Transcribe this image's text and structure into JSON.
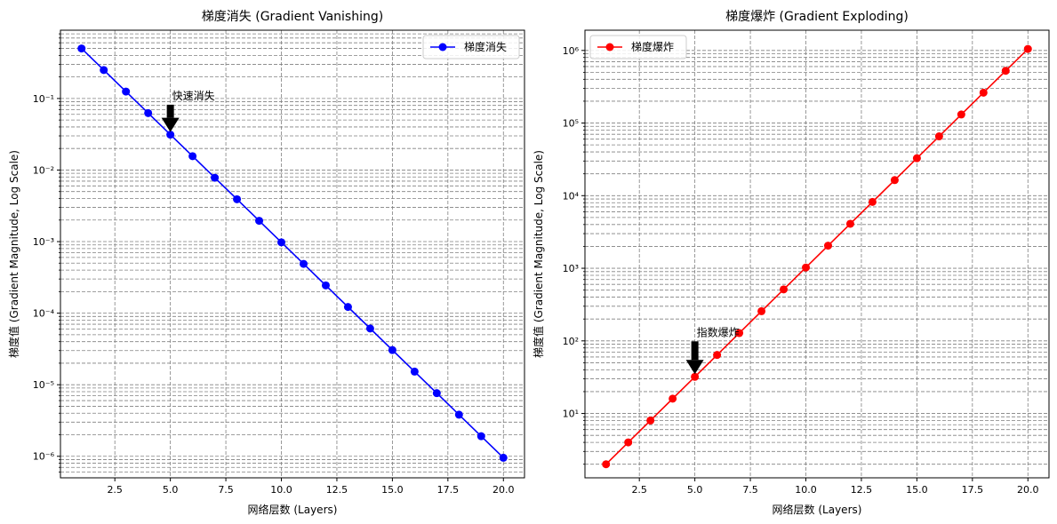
{
  "chart_data": [
    {
      "type": "line",
      "title": "梯度消失 (Gradient Vanishing)",
      "xlabel": "网络层数 (Layers)",
      "ylabel": "梯度值 (Gradient Magnitude, Log Scale)",
      "yscale": "log",
      "xlim": [
        0.05,
        20.95
      ],
      "ylim": [
        5e-07,
        0.9
      ],
      "xticks": [
        2.5,
        5.0,
        7.5,
        10.0,
        12.5,
        15.0,
        17.5,
        20.0
      ],
      "xtick_labels": [
        "2.5",
        "5.0",
        "7.5",
        "10.0",
        "12.5",
        "15.0",
        "17.5",
        "20.0"
      ],
      "ytick_exponents": [
        -6,
        -5,
        -4,
        -3,
        -2,
        -1
      ],
      "ytick_labels": [
        "10⁻⁶",
        "10⁻⁵",
        "10⁻⁴",
        "10⁻³",
        "10⁻²",
        "10⁻¹"
      ],
      "grid": true,
      "legend_position": "upper right",
      "series": [
        {
          "name": "梯度消失",
          "color": "#0000ff",
          "marker": "circle",
          "x": [
            1,
            2,
            3,
            4,
            5,
            6,
            7,
            8,
            9,
            10,
            11,
            12,
            13,
            14,
            15,
            16,
            17,
            18,
            19,
            20
          ],
          "y": [
            0.5,
            0.25,
            0.125,
            0.0625,
            0.03125,
            0.015625,
            0.0078125,
            0.00390625,
            0.001953125,
            0.0009765625,
            0.00048828125,
            0.000244140625,
            0.0001220703125,
            6.103515625e-05,
            3.0517578125e-05,
            1.52587890625e-05,
            7.62939453125e-06,
            3.814697265625e-06,
            1.9073486328125e-06,
            9.5367431640625e-07
          ]
        }
      ],
      "annotation": {
        "text": "快速消失",
        "x": 5,
        "y": 0.03125,
        "text_y": 0.1
      }
    },
    {
      "type": "line",
      "title": "梯度爆炸 (Gradient Exploding)",
      "xlabel": "网络层数 (Layers)",
      "ylabel": "梯度值 (Gradient Magnitude, Log Scale)",
      "yscale": "log",
      "xlim": [
        0.05,
        20.95
      ],
      "ylim": [
        1.3,
        1900000.0
      ],
      "xticks": [
        2.5,
        5.0,
        7.5,
        10.0,
        12.5,
        15.0,
        17.5,
        20.0
      ],
      "xtick_labels": [
        "2.5",
        "5.0",
        "7.5",
        "10.0",
        "12.5",
        "15.0",
        "17.5",
        "20.0"
      ],
      "ytick_exponents": [
        1,
        2,
        3,
        4,
        5,
        6
      ],
      "ytick_labels": [
        "10¹",
        "10²",
        "10³",
        "10⁴",
        "10⁵",
        "10⁶"
      ],
      "grid": true,
      "legend_position": "upper left",
      "series": [
        {
          "name": "梯度爆炸",
          "color": "#ff0000",
          "marker": "circle",
          "x": [
            1,
            2,
            3,
            4,
            5,
            6,
            7,
            8,
            9,
            10,
            11,
            12,
            13,
            14,
            15,
            16,
            17,
            18,
            19,
            20
          ],
          "y": [
            2,
            4,
            8,
            16,
            32,
            64,
            128,
            256,
            512,
            1024,
            2048,
            4096,
            8192,
            16384,
            32768,
            65536,
            131072,
            262144,
            524288,
            1048576
          ]
        }
      ],
      "annotation": {
        "text": "指数爆炸",
        "x": 5,
        "y": 32,
        "text_y": 120
      }
    }
  ]
}
